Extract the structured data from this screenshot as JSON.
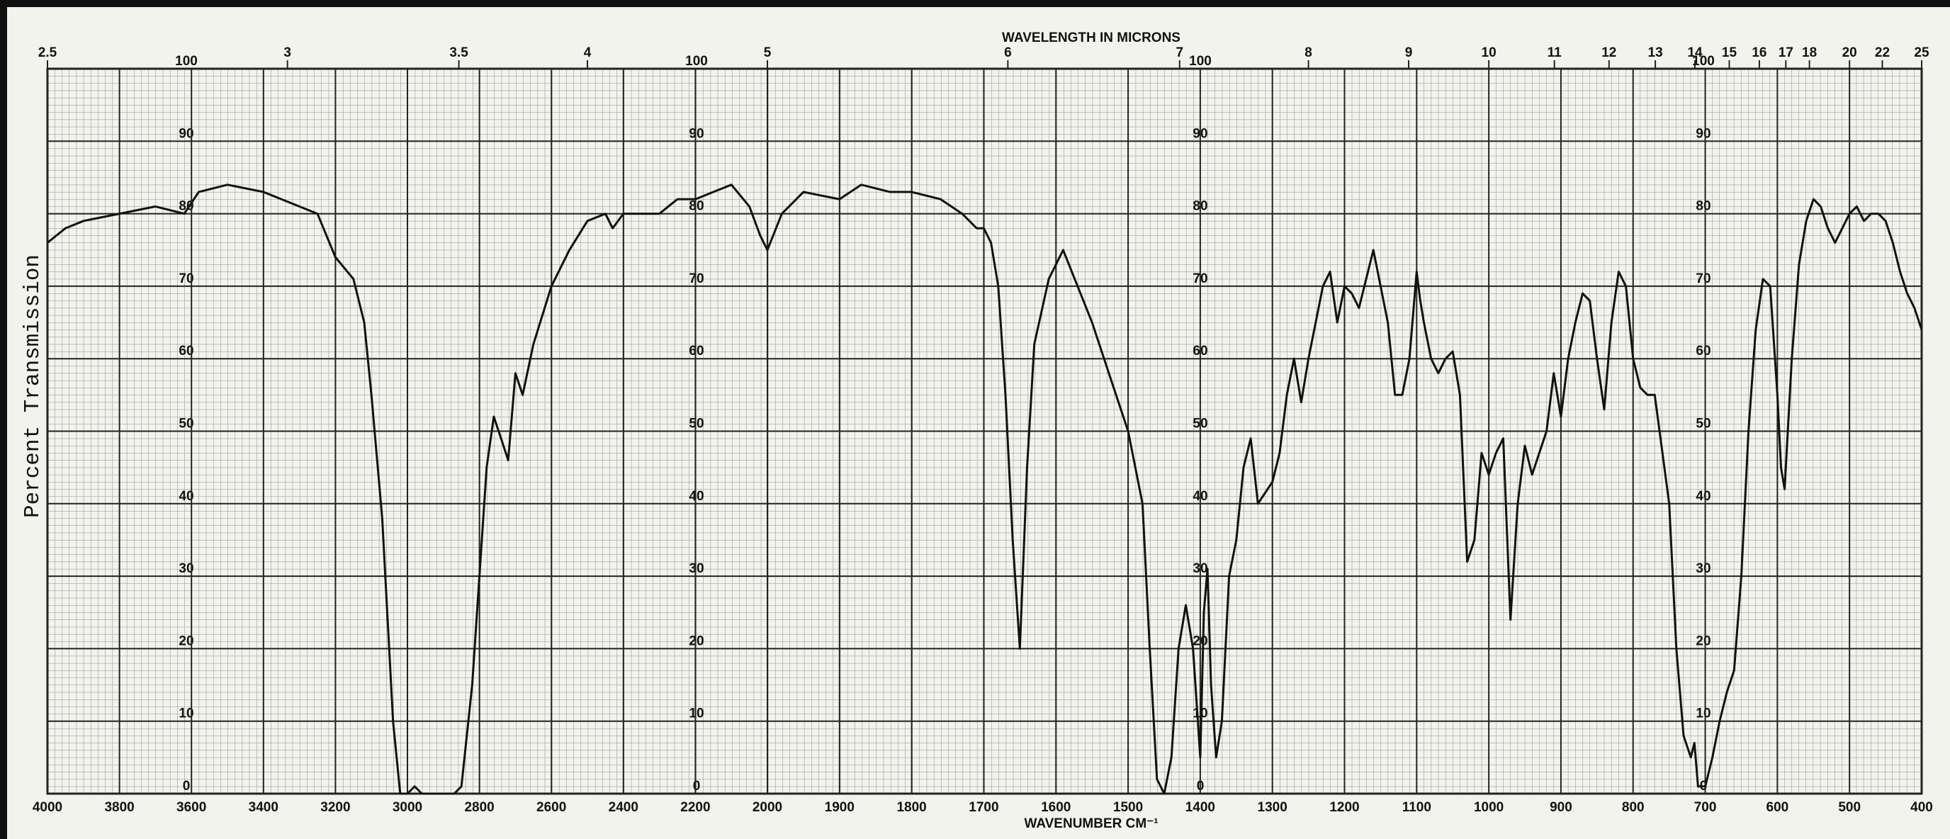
{
  "chart_data": {
    "type": "line",
    "x2_title": "WAVELENGTH IN MICRONS",
    "x_title": "WAVENUMBER CM⁻¹",
    "y_title": "Percent Transmission",
    "x": [
      4000,
      3950,
      3900,
      3800,
      3700,
      3620,
      3580,
      3500,
      3400,
      3300,
      3250,
      3200,
      3150,
      3120,
      3100,
      3070,
      3040,
      3020,
      3000,
      2980,
      2960,
      2930,
      2900,
      2870,
      2850,
      2820,
      2800,
      2780,
      2760,
      2740,
      2720,
      2700,
      2680,
      2650,
      2600,
      2550,
      2500,
      2450,
      2430,
      2400,
      2300,
      2250,
      2200,
      2150,
      2100,
      2050,
      2020,
      2000,
      1980,
      1950,
      1900,
      1870,
      1830,
      1800,
      1760,
      1730,
      1710,
      1700,
      1690,
      1680,
      1670,
      1660,
      1650,
      1640,
      1630,
      1610,
      1600,
      1590,
      1570,
      1550,
      1520,
      1500,
      1480,
      1470,
      1460,
      1450,
      1440,
      1430,
      1420,
      1410,
      1400,
      1395,
      1390,
      1385,
      1378,
      1370,
      1360,
      1350,
      1340,
      1330,
      1320,
      1300,
      1290,
      1280,
      1270,
      1260,
      1250,
      1230,
      1220,
      1210,
      1200,
      1190,
      1180,
      1160,
      1150,
      1140,
      1130,
      1120,
      1110,
      1100,
      1095,
      1090,
      1080,
      1070,
      1060,
      1050,
      1040,
      1030,
      1020,
      1010,
      1000,
      990,
      980,
      970,
      960,
      950,
      940,
      930,
      920,
      910,
      905,
      900,
      890,
      880,
      870,
      860,
      850,
      840,
      830,
      820,
      810,
      800,
      790,
      780,
      770,
      750,
      740,
      730,
      720,
      715,
      710,
      700,
      690,
      680,
      670,
      660,
      650,
      640,
      630,
      620,
      610,
      600,
      595,
      590,
      580,
      570,
      560,
      550,
      540,
      530,
      520,
      510,
      500,
      490,
      480,
      470,
      460,
      450,
      440,
      430,
      420,
      410,
      400
    ],
    "values": [
      76,
      78,
      79,
      80,
      81,
      80,
      83,
      84,
      83,
      81,
      80,
      74,
      71,
      65,
      55,
      38,
      10,
      0,
      0,
      1,
      0,
      0,
      0,
      0,
      1,
      15,
      30,
      45,
      52,
      49,
      46,
      58,
      55,
      62,
      70,
      75,
      79,
      80,
      78,
      80,
      80,
      82,
      82,
      83,
      84,
      81,
      77,
      75,
      80,
      83,
      82,
      84,
      83,
      83,
      82,
      80,
      78,
      78,
      76,
      70,
      55,
      35,
      20,
      45,
      62,
      71,
      73,
      75,
      70,
      65,
      56,
      50,
      40,
      20,
      2,
      0,
      5,
      20,
      26,
      20,
      5,
      25,
      31,
      15,
      5,
      10,
      30,
      35,
      45,
      49,
      40,
      43,
      47,
      55,
      60,
      54,
      60,
      70,
      72,
      65,
      70,
      69,
      67,
      75,
      70,
      65,
      55,
      55,
      60,
      72,
      68,
      65,
      60,
      58,
      60,
      61,
      55,
      32,
      35,
      47,
      44,
      47,
      49,
      24,
      40,
      48,
      44,
      47,
      50,
      58,
      55,
      52,
      60,
      65,
      69,
      68,
      60,
      53,
      65,
      72,
      70,
      60,
      56,
      55,
      55,
      40,
      20,
      8,
      5,
      7,
      1,
      1,
      5,
      10,
      14,
      17,
      30,
      50,
      64,
      71,
      70,
      55,
      45,
      42,
      60,
      73,
      79,
      82,
      81,
      78,
      76,
      78,
      80,
      81,
      79,
      80,
      80,
      79,
      76,
      72,
      69,
      67,
      64
    ],
    "color": "#111111",
    "xlim": [
      4000,
      400
    ],
    "x_scale_break": 2000,
    "xticks": [
      4000,
      3800,
      3600,
      3400,
      3200,
      3000,
      2800,
      2600,
      2400,
      2200,
      2000,
      1900,
      1800,
      1700,
      1600,
      1500,
      1400,
      1300,
      1200,
      1100,
      1000,
      900,
      800,
      700,
      600,
      500,
      400
    ],
    "x2ticks": [
      2.5,
      3,
      3.5,
      4,
      5,
      6,
      7,
      8,
      9,
      10,
      11,
      12,
      13,
      14,
      15,
      16,
      17,
      18,
      20,
      22,
      25
    ],
    "ylim": [
      0,
      100
    ],
    "yticks": [
      0,
      10,
      20,
      30,
      40,
      50,
      60,
      70,
      80,
      90,
      100
    ],
    "grid": true
  }
}
